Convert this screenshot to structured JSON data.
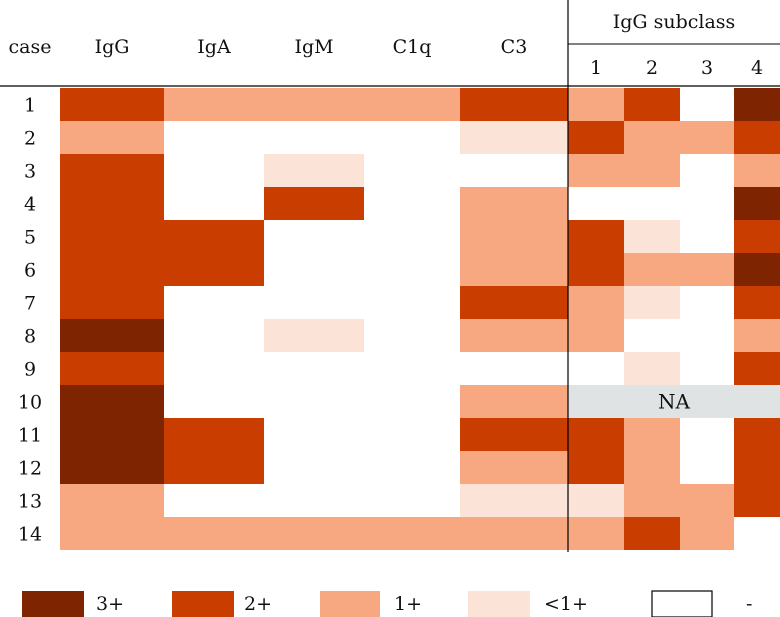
{
  "chart_data": {
    "type": "heatmap",
    "row_header": "case",
    "group_header": "IgG subclass",
    "columns": [
      "IgG",
      "IgA",
      "IgM",
      "C1q",
      "C3",
      "1",
      "2",
      "3",
      "4"
    ],
    "rows": [
      "1",
      "2",
      "3",
      "4",
      "5",
      "6",
      "7",
      "8",
      "9",
      "10",
      "11",
      "12",
      "13",
      "14"
    ],
    "levels": {
      "3": {
        "label": "3+",
        "color": "#7f2400"
      },
      "2": {
        "label": "2+",
        "color": "#c93e00"
      },
      "1": {
        "label": "1+",
        "color": "#f7a880"
      },
      "0.5": {
        "label": "<1+",
        "color": "#fbe3d8"
      },
      "0": {
        "label": "-",
        "color": "#ffffff"
      }
    },
    "na": {
      "label": "NA",
      "color": "#dfe3e3"
    },
    "values": [
      [
        2,
        1,
        1,
        1,
        2,
        1,
        2,
        0,
        3
      ],
      [
        1,
        0,
        0,
        0,
        0.5,
        2,
        1,
        1,
        2
      ],
      [
        2,
        0,
        0.5,
        0,
        0,
        1,
        1,
        0,
        1
      ],
      [
        2,
        0,
        2,
        0,
        1,
        0,
        0,
        0,
        3
      ],
      [
        2,
        2,
        0,
        0,
        1,
        2,
        0.5,
        0,
        2
      ],
      [
        2,
        2,
        0,
        0,
        1,
        2,
        1,
        1,
        3
      ],
      [
        2,
        0,
        0,
        0,
        2,
        1,
        0.5,
        0,
        2
      ],
      [
        3,
        0,
        0.5,
        0,
        1,
        1,
        0,
        0,
        1
      ],
      [
        2,
        0,
        0,
        0,
        0,
        0,
        0.5,
        0,
        2
      ],
      [
        3,
        0,
        0,
        0,
        1,
        "NA",
        "NA",
        "NA",
        "NA"
      ],
      [
        3,
        2,
        0,
        0,
        2,
        2,
        1,
        0,
        2
      ],
      [
        3,
        2,
        0,
        0,
        1,
        2,
        1,
        0,
        2
      ],
      [
        1,
        0,
        0,
        0,
        0.5,
        0.5,
        1,
        1,
        2
      ],
      [
        1,
        1,
        1,
        1,
        1,
        1,
        2,
        1,
        0
      ]
    ],
    "legend": [
      {
        "label": "3+",
        "level": "3"
      },
      {
        "label": "2+",
        "level": "2"
      },
      {
        "label": "1+",
        "level": "1"
      },
      {
        "label": "<1+",
        "level": "0.5"
      },
      {
        "label": "-",
        "level": "0"
      }
    ]
  }
}
